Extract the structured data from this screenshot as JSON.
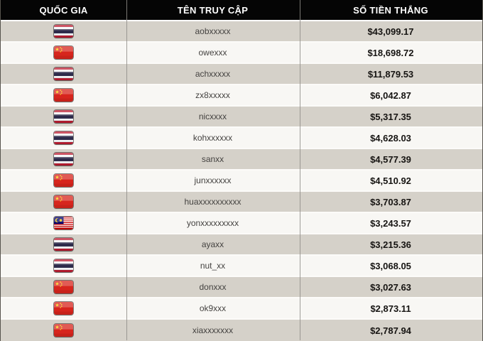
{
  "table": {
    "columns": [
      {
        "key": "country",
        "label": "QUỐC GIA"
      },
      {
        "key": "username",
        "label": "TÊN TRUY CẬP"
      },
      {
        "key": "amount",
        "label": "SỐ TIỀN THẮNG"
      }
    ],
    "rows": [
      {
        "country": "thailand",
        "flag_icon": "thailand-flag-icon",
        "username": "aobxxxxx",
        "amount": "$43,099.17"
      },
      {
        "country": "china",
        "flag_icon": "china-flag-icon",
        "username": "owexxx",
        "amount": "$18,698.72"
      },
      {
        "country": "thailand",
        "flag_icon": "thailand-flag-icon",
        "username": "achxxxxx",
        "amount": "$11,879.53"
      },
      {
        "country": "china",
        "flag_icon": "china-flag-icon",
        "username": "zx8xxxxx",
        "amount": "$6,042.87"
      },
      {
        "country": "thailand",
        "flag_icon": "thailand-flag-icon",
        "username": "nicxxxx",
        "amount": "$5,317.35"
      },
      {
        "country": "thailand",
        "flag_icon": "thailand-flag-icon",
        "username": "kohxxxxxx",
        "amount": "$4,628.03"
      },
      {
        "country": "thailand",
        "flag_icon": "thailand-flag-icon",
        "username": "sanxx",
        "amount": "$4,577.39"
      },
      {
        "country": "china",
        "flag_icon": "china-flag-icon",
        "username": "junxxxxxx",
        "amount": "$4,510.92"
      },
      {
        "country": "china",
        "flag_icon": "china-flag-icon",
        "username": "huaxxxxxxxxxx",
        "amount": "$3,703.87"
      },
      {
        "country": "malaysia",
        "flag_icon": "malaysia-flag-icon",
        "username": "yonxxxxxxxxx",
        "amount": "$3,243.57"
      },
      {
        "country": "thailand",
        "flag_icon": "thailand-flag-icon",
        "username": "ayaxx",
        "amount": "$3,215.36"
      },
      {
        "country": "thailand",
        "flag_icon": "thailand-flag-icon",
        "username": "nut_xx",
        "amount": "$3,068.05"
      },
      {
        "country": "china",
        "flag_icon": "china-flag-icon",
        "username": "donxxx",
        "amount": "$3,027.63"
      },
      {
        "country": "china",
        "flag_icon": "china-flag-icon",
        "username": "ok9xxx",
        "amount": "$2,873.11"
      },
      {
        "country": "china",
        "flag_icon": "china-flag-icon",
        "username": "xiaxxxxxxx",
        "amount": "$2,787.94"
      }
    ]
  },
  "colors": {
    "header_bg": "#050505",
    "header_text": "#ffffff",
    "row_odd_bg": "#d5d1c9",
    "row_even_bg": "#f8f7f4",
    "row_separator": "#fcfbf9",
    "column_divider": "#8f8d88",
    "username_text": "#454341",
    "amount_text": "#161412"
  }
}
